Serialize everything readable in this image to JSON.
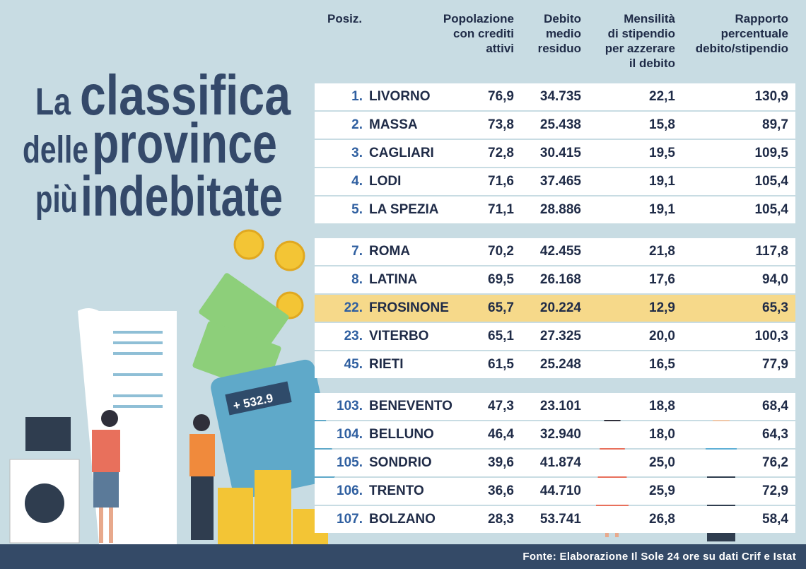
{
  "title": {
    "line1": [
      "La",
      "classifica"
    ],
    "line2": [
      "delle",
      "province"
    ],
    "line3": [
      "più",
      "indebitate"
    ]
  },
  "table": {
    "headers": [
      [
        "Posiz."
      ],
      [
        "Popolazione",
        "con crediti",
        "attivi"
      ],
      [
        "Debito",
        "medio",
        "residuo"
      ],
      [
        "Mensilità",
        "di stipendio",
        "per azzerare",
        "il debito"
      ],
      [
        "Rapporto",
        "percentuale",
        "debito/stipendio"
      ]
    ],
    "groups": [
      [
        {
          "cells": [
            "1.",
            "LIVORNO",
            "76,9",
            "34.735",
            "22,1",
            "130,9"
          ]
        },
        {
          "cells": [
            "2.",
            "MASSA",
            "73,8",
            "25.438",
            "15,8",
            "89,7"
          ]
        },
        {
          "cells": [
            "3.",
            "CAGLIARI",
            "72,8",
            "30.415",
            "19,5",
            "109,5"
          ]
        },
        {
          "cells": [
            "4.",
            "LODI",
            "71,6",
            "37.465",
            "19,1",
            "105,4"
          ]
        },
        {
          "cells": [
            "5.",
            "LA SPEZIA",
            "71,1",
            "28.886",
            "19,1",
            "105,4"
          ]
        }
      ],
      [
        {
          "cells": [
            "7.",
            "ROMA",
            "70,2",
            "42.455",
            "21,8",
            "117,8"
          ]
        },
        {
          "cells": [
            "8.",
            "LATINA",
            "69,5",
            "26.168",
            "17,6",
            "94,0"
          ]
        },
        {
          "cells": [
            "22.",
            "FROSINONE",
            "65,7",
            "20.224",
            "12,9",
            "65,3"
          ],
          "highlighted": true
        },
        {
          "cells": [
            "23.",
            "VITERBO",
            "65,1",
            "27.325",
            "20,0",
            "100,3"
          ]
        },
        {
          "cells": [
            "45.",
            "RIETI",
            "61,5",
            "25.248",
            "16,5",
            "77,9"
          ]
        }
      ],
      [
        {
          "cells": [
            "103.",
            "BENEVENTO",
            "47,3",
            "23.101",
            "18,8",
            "68,4"
          ]
        },
        {
          "cells": [
            "104.",
            "BELLUNO",
            "46,4",
            "32.940",
            "18,0",
            "64,3"
          ]
        },
        {
          "cells": [
            "105.",
            "SONDRIO",
            "39,6",
            "41.874",
            "25,0",
            "76,2"
          ]
        },
        {
          "cells": [
            "106.",
            "TRENTO",
            "36,6",
            "44.710",
            "25,9",
            "72,9"
          ]
        },
        {
          "cells": [
            "107.",
            "BOLZANO",
            "28,3",
            "53.741",
            "26,8",
            "58,4"
          ]
        }
      ]
    ]
  },
  "calculator_display": "+ 532.9",
  "source": "Fonte: Elaborazione Il Sole 24 ore su dati Crif e Istat"
}
